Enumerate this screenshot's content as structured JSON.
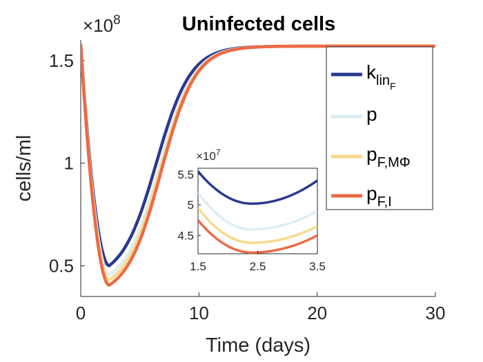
{
  "chart_data": {
    "type": "line",
    "title": "Uninfected cells",
    "xlabel": "Time (days)",
    "ylabel": "cells/ml",
    "xlim": [
      0,
      30
    ],
    "ylim": [
      0.35,
      1.6
    ],
    "y_exponent_label": "×10",
    "y_exponent": "8",
    "xticks": [
      "0",
      "10",
      "20",
      "30"
    ],
    "yticks": [
      "0.5",
      "1",
      "1.5"
    ],
    "legend_position": "top-right",
    "series": [
      {
        "name": "k",
        "sub": "lin",
        "subsub": "F",
        "color": "#2b3a8f",
        "min_value": 0.5,
        "offset": 0.04
      },
      {
        "name": "p",
        "sub": "",
        "subsub": "",
        "color": "#dcedf5",
        "min_value": 0.455,
        "offset": 0.012
      },
      {
        "name": "p",
        "sub": "F,MΦ",
        "subsub": "",
        "color": "#f8da8c",
        "min_value": 0.43,
        "offset": 0.006
      },
      {
        "name": "p",
        "sub": "F,I",
        "subsub": "",
        "color": "#ec6a45",
        "min_value": 0.405,
        "offset": 0.0
      }
    ],
    "main_curve": {
      "start": 1.58,
      "min_time": 2.4,
      "plateau": 1.57
    },
    "inset": {
      "xlim": [
        1.5,
        3.5
      ],
      "ylim": [
        4.2,
        5.6
      ],
      "xticks": [
        "1.5",
        "2.5",
        "3.5"
      ],
      "yticks": [
        "4.5",
        "5",
        "5.5"
      ],
      "y_exponent_label": "×10",
      "y_exponent": "7",
      "series_values": [
        {
          "start": 5.55,
          "min": 5.02,
          "end": 5.4
        },
        {
          "start": 5.2,
          "min": 4.6,
          "end": 4.9
        },
        {
          "start": 4.95,
          "min": 4.38,
          "end": 4.65
        },
        {
          "start": 4.75,
          "min": 4.22,
          "end": 4.5
        }
      ]
    }
  }
}
